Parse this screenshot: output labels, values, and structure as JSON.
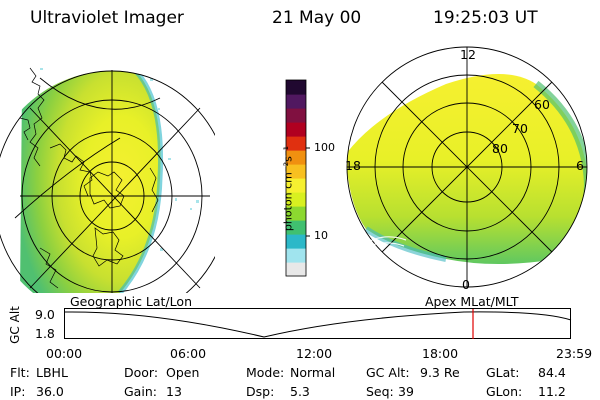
{
  "header": {
    "instrument": "Ultraviolet Imager",
    "date": "21 May 00",
    "time": "19:25:03 UT"
  },
  "colorbar": {
    "unit_label": "photon cm⁻²s⁻¹",
    "ticks": [
      "100",
      "10"
    ],
    "colors": [
      "#e8e8e8",
      "#a0e4ee",
      "#2cb8c8",
      "#40c070",
      "#8cd830",
      "#d8f020",
      "#f6f030",
      "#f8c020",
      "#f09010",
      "#e03010",
      "#b00020",
      "#801040",
      "#501860",
      "#200830"
    ]
  },
  "left_panel": {
    "label": "Geographic Lat/Lon"
  },
  "right_panel": {
    "label": "Apex MLat/MLT",
    "mlt_labels": {
      "top": "12",
      "left": "18",
      "right": "6",
      "bottom": "0"
    },
    "lat_labels": [
      "60",
      "70",
      "80"
    ]
  },
  "altitude_plot": {
    "ylabel": "GC Alt",
    "yticks": [
      "9.0",
      "1.8"
    ],
    "xticks": [
      "00:00",
      "06:00",
      "12:00",
      "18:00",
      "23:59"
    ],
    "marker_color": "#e00000"
  },
  "status": {
    "row1": [
      {
        "key": "Flt:",
        "value": "LBHL"
      },
      {
        "key": "Door:",
        "value": "Open"
      },
      {
        "key": "Mode:",
        "value": "Normal"
      },
      {
        "key": "GC Alt:",
        "value": "9.3 Re"
      },
      {
        "key": "GLat:",
        "value": "84.4"
      }
    ],
    "row2": [
      {
        "key": "IP:",
        "value": "36.0"
      },
      {
        "key": "Gain:",
        "value": "13"
      },
      {
        "key": "Dsp:",
        "value": "5.3"
      },
      {
        "key": "Seq:",
        "value": "39"
      },
      {
        "key": "GLon:",
        "value": "11.2"
      }
    ]
  }
}
